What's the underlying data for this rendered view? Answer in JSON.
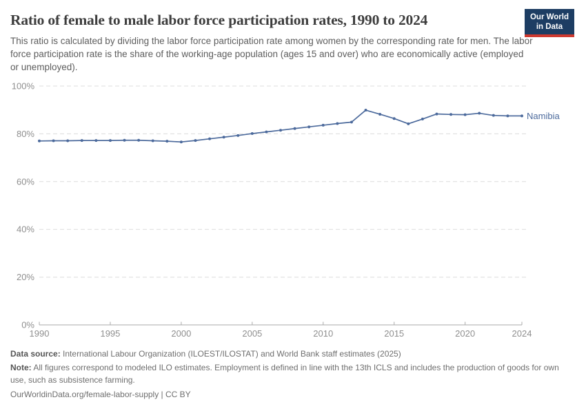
{
  "header": {
    "title": "Ratio of female to male labor force participation rates, 1990 to 2024",
    "subtitle": "This ratio is calculated by dividing the labor force participation rate among women by the corresponding rate for men. The labor force participation rate is the share of the working-age population (ages 15 and over) who are economically active (employed or unemployed).",
    "logo": {
      "line1": "Our World",
      "line2": "in Data",
      "bg": "#1d3d63",
      "accent": "#cf3a30"
    }
  },
  "chart_data": {
    "type": "line",
    "title": "Ratio of female to male labor force participation rates, 1990 to 2024",
    "xlabel": "",
    "ylabel": "",
    "xlim": [
      1990,
      2024
    ],
    "ylim": [
      0,
      100
    ],
    "xticks": [
      1990,
      1995,
      2000,
      2005,
      2010,
      2015,
      2020,
      2024
    ],
    "yticks": [
      0,
      20,
      40,
      60,
      80,
      100
    ],
    "ytick_suffix": "%",
    "grid": true,
    "legend": "line-end-label",
    "series": [
      {
        "name": "Namibia",
        "color": "#4C6A9C",
        "x": [
          1990,
          1991,
          1992,
          1993,
          1994,
          1995,
          1996,
          1997,
          1998,
          1999,
          2000,
          2001,
          2002,
          2003,
          2004,
          2005,
          2006,
          2007,
          2008,
          2009,
          2010,
          2011,
          2012,
          2013,
          2014,
          2015,
          2016,
          2017,
          2018,
          2019,
          2020,
          2021,
          2022,
          2023,
          2024
        ],
        "values": [
          77.0,
          77.1,
          77.1,
          77.2,
          77.2,
          77.2,
          77.3,
          77.3,
          77.1,
          76.9,
          76.6,
          77.2,
          77.9,
          78.6,
          79.3,
          80.1,
          80.8,
          81.5,
          82.2,
          82.9,
          83.6,
          84.3,
          84.9,
          89.9,
          88.2,
          86.4,
          84.2,
          86.2,
          88.3,
          88.1,
          88.0,
          88.6,
          87.7,
          87.5,
          87.5
        ]
      }
    ]
  },
  "footer": {
    "data_source_label": "Data source:",
    "data_source": "International Labour Organization (ILOEST/ILOSTAT) and World Bank staff estimates (2025)",
    "note_label": "Note:",
    "note": "All figures correspond to modeled ILO estimates. Employment is defined in line with the 13th ICLS and includes the production of goods for own use, such as subsistence farming.",
    "url": "OurWorldinData.org/female-labor-supply",
    "separator": " | ",
    "license": "CC BY"
  }
}
